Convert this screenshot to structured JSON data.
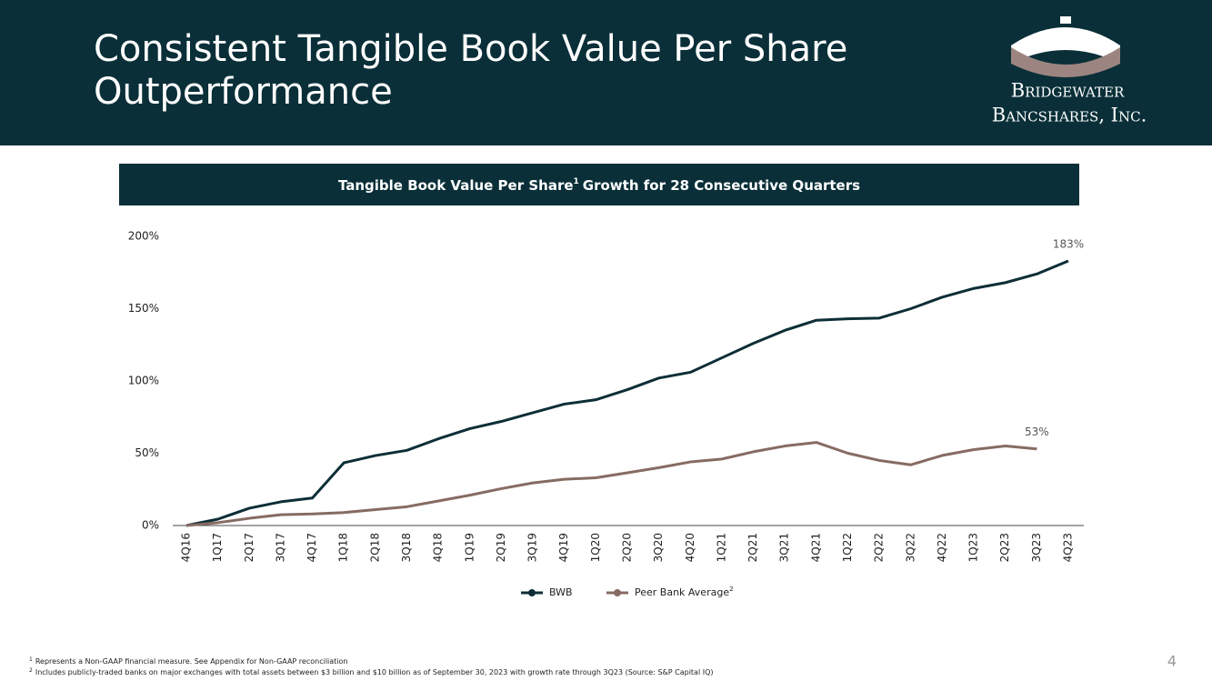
{
  "header": {
    "title_lines": [
      "Consistent Tangible Book Value Per Share",
      "Outperformance"
    ],
    "logo_lines": [
      "Bridgewater",
      "Bancshares, Inc."
    ]
  },
  "chart_data": {
    "type": "line",
    "title": {
      "text": "Tangible Book Value Per Share",
      "note": "1",
      "rest": "Growth for 28 Consecutive Quarters"
    },
    "categories": [
      "4Q16",
      "1Q17",
      "2Q17",
      "3Q17",
      "4Q17",
      "1Q18",
      "2Q18",
      "3Q18",
      "4Q18",
      "1Q19",
      "2Q19",
      "3Q19",
      "4Q19",
      "1Q20",
      "2Q20",
      "3Q20",
      "4Q20",
      "1Q21",
      "2Q21",
      "3Q21",
      "4Q21",
      "1Q22",
      "2Q22",
      "3Q22",
      "4Q22",
      "1Q23",
      "2Q23",
      "3Q23",
      "4Q23"
    ],
    "series": [
      {
        "name": "BWB",
        "color": "#0d2e36",
        "values": [
          0,
          4.4,
          12,
          16.4,
          19,
          43.4,
          48.4,
          52,
          60,
          67,
          72,
          78,
          84,
          87,
          94,
          102,
          106,
          116,
          126,
          135,
          142,
          143,
          143.5,
          150,
          158,
          164,
          168,
          174,
          183
        ],
        "value_labels": [
          null,
          null,
          null,
          null,
          null,
          null,
          null,
          null,
          null,
          null,
          null,
          null,
          null,
          null,
          null,
          null,
          null,
          null,
          null,
          null,
          null,
          null,
          null,
          null,
          null,
          null,
          null,
          null,
          "183%"
        ]
      },
      {
        "name": "Peer Bank Average",
        "note": "2",
        "color": "#876b63",
        "values": [
          0,
          2,
          5,
          7.5,
          8,
          9,
          11,
          13,
          17,
          21,
          25.5,
          29.5,
          32,
          33,
          36.5,
          40,
          44,
          46,
          51,
          55,
          57.5,
          50,
          45,
          42,
          48.5,
          52.5,
          55,
          53,
          null
        ],
        "value_labels": [
          null,
          null,
          null,
          null,
          null,
          null,
          null,
          null,
          null,
          null,
          null,
          null,
          null,
          null,
          null,
          null,
          null,
          null,
          null,
          null,
          null,
          null,
          null,
          null,
          null,
          null,
          null,
          "53%",
          null
        ]
      }
    ],
    "ylim": [
      0,
      200
    ],
    "yticks": [
      {
        "value": 0,
        "label": "0%"
      },
      {
        "value": 50,
        "label": "50%"
      },
      {
        "value": 100,
        "label": "100%"
      },
      {
        "value": 150,
        "label": "150%"
      },
      {
        "value": 200,
        "label": "200%"
      }
    ],
    "legend": "bottom"
  },
  "footnotes": [
    {
      "mark": "1",
      "text": "Represents a Non-GAAP financial measure. See Appendix for Non-GAAP reconciliation"
    },
    {
      "mark": "2",
      "text": "Includes publicly-traded banks on major exchanges with total assets between $3 billion and $10 billion as of September 30, 2023 with growth rate through 3Q23 (Source: S&P Capital IQ)"
    }
  ],
  "page_number": "4"
}
